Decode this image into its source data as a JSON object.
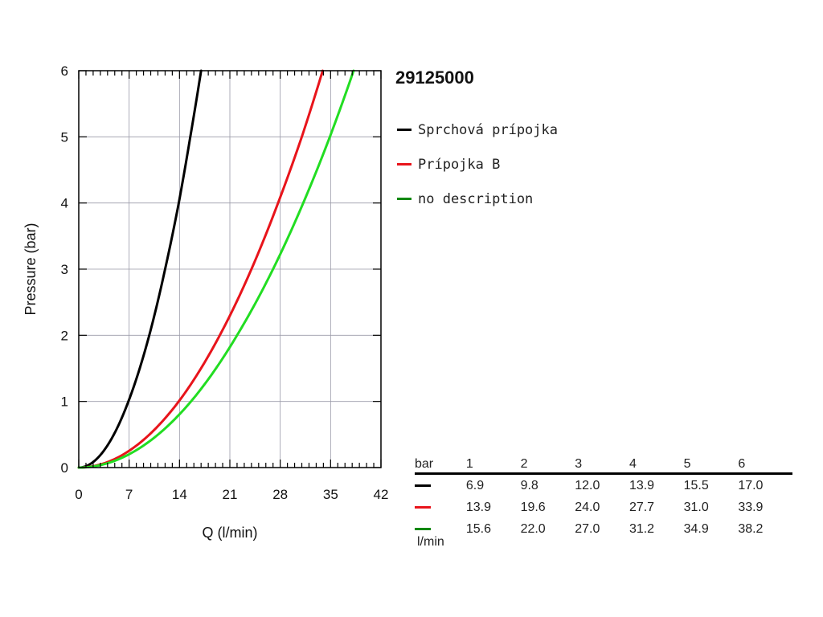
{
  "chart_data": {
    "type": "line",
    "title": "29125000",
    "xlabel": "Q (l/min)",
    "ylabel": "Pressure (bar)",
    "xlim": [
      0,
      42
    ],
    "ylim": [
      0,
      6
    ],
    "x_ticks": [
      0,
      7,
      14,
      21,
      28,
      35,
      42
    ],
    "y_ticks": [
      0,
      1,
      2,
      3,
      4,
      5,
      6
    ],
    "grid": true,
    "legend_position": "right",
    "series": [
      {
        "name": "Sprchová prípojka",
        "color": "#000000",
        "x": [
          0,
          6.9,
          9.8,
          12.0,
          13.9,
          15.5,
          17.0
        ],
        "y": [
          0,
          1,
          2,
          3,
          4,
          5,
          6
        ]
      },
      {
        "name": "Prípojka B",
        "color": "#e8141b",
        "x": [
          0,
          13.9,
          19.6,
          24.0,
          27.7,
          31.0,
          33.9
        ],
        "y": [
          0,
          1,
          2,
          3,
          4,
          5,
          6
        ]
      },
      {
        "name": "no description",
        "color": "#22dd22",
        "legend_color": "#118811",
        "x": [
          0,
          15.6,
          22.0,
          27.0,
          31.2,
          34.9,
          38.2
        ],
        "y": [
          0,
          1,
          2,
          3,
          4,
          5,
          6
        ]
      }
    ]
  },
  "table": {
    "header_label": "bar",
    "unit_label": "l/min",
    "pressures": [
      "1",
      "2",
      "3",
      "4",
      "5",
      "6"
    ],
    "rows": [
      {
        "color": "#000000",
        "values": [
          "6.9",
          "9.8",
          "12.0",
          "13.9",
          "15.5",
          "17.0"
        ]
      },
      {
        "color": "#e8141b",
        "values": [
          "13.9",
          "19.6",
          "24.0",
          "27.7",
          "31.0",
          "33.9"
        ]
      },
      {
        "color": "#118811",
        "values": [
          "15.6",
          "22.0",
          "27.0",
          "31.2",
          "34.9",
          "38.2"
        ]
      }
    ]
  }
}
